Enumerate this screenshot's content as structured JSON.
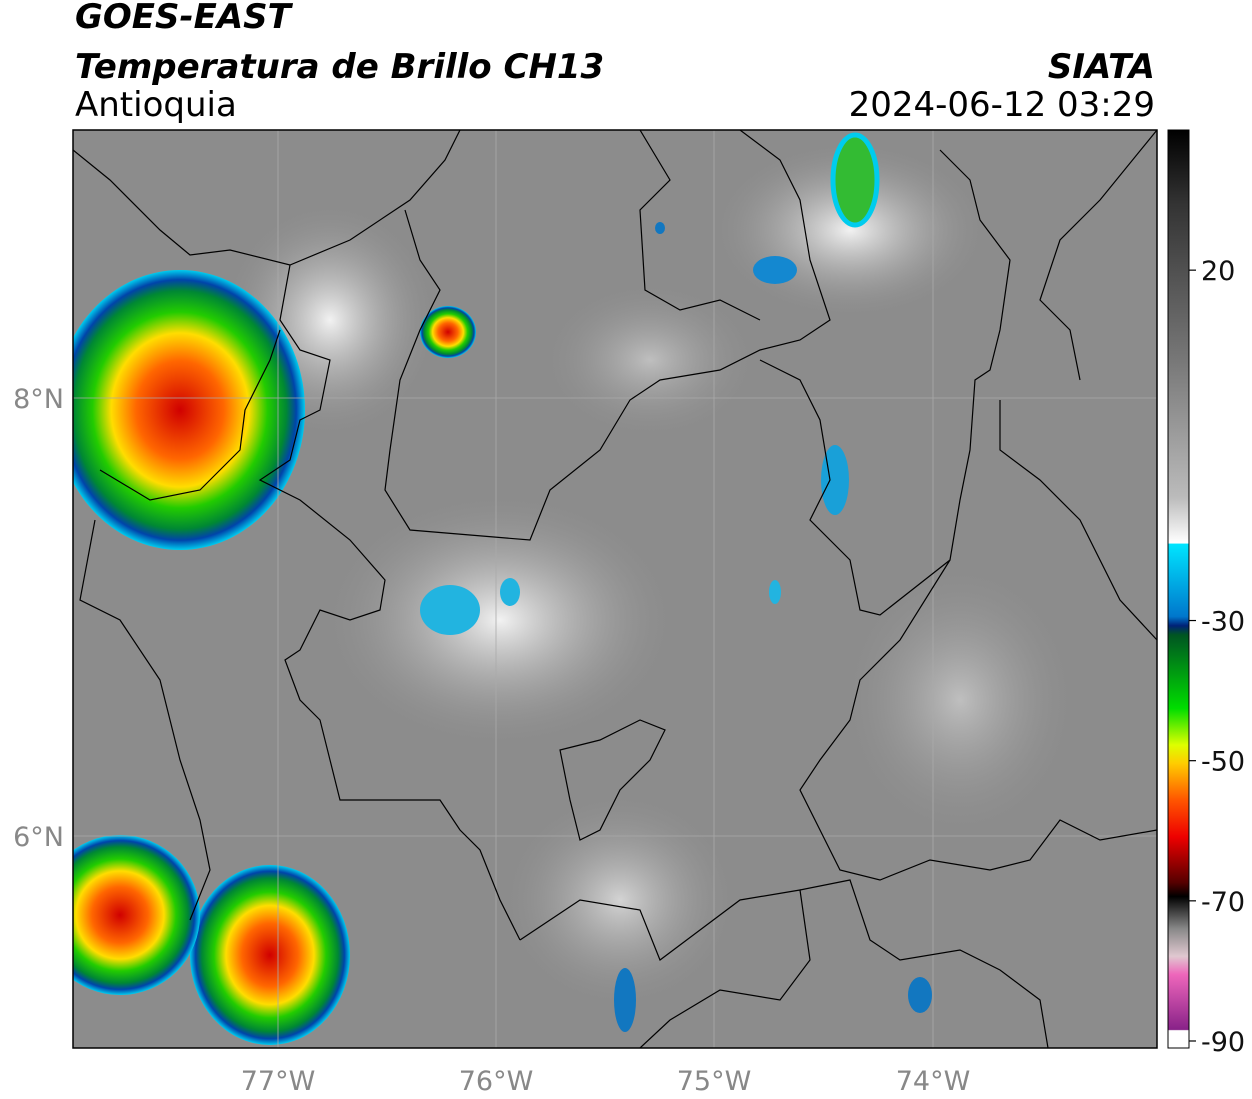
{
  "header": {
    "title": "GOES-EAST",
    "subtitle": "Temperatura de Brillo CH13",
    "region": "Antioquia",
    "source": "SIATA",
    "datetime": "2024-06-12 03:29"
  },
  "map": {
    "lat_labels": [
      "8°N",
      "6°N"
    ],
    "lon_labels": [
      "77°W",
      "76°W",
      "75°W",
      "74°W"
    ]
  },
  "colorbar": {
    "lim": [
      -91,
      40
    ],
    "ticks": [
      20,
      -30,
      -50,
      -70,
      -90
    ]
  }
}
